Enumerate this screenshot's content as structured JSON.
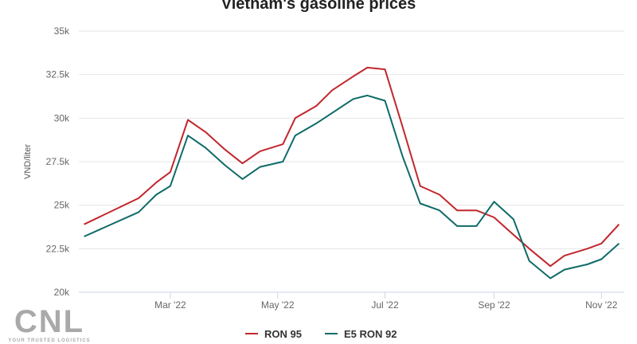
{
  "chart_data": {
    "type": "line",
    "title": "Vietnam's gasoline prices",
    "xlabel": "",
    "ylabel": "VND/liter",
    "ylim": [
      20000,
      35000
    ],
    "xlim": [
      "2022-01-08",
      "2022-11-14"
    ],
    "yticks": [
      20000,
      22500,
      25000,
      27500,
      30000,
      32500,
      35000
    ],
    "ytick_labels": [
      "20k",
      "22.5k",
      "25k",
      "27.5k",
      "30k",
      "32.5k",
      "35k"
    ],
    "xticks": [
      "2022-03-01",
      "2022-05-01",
      "2022-07-01",
      "2022-09-01",
      "2022-11-01"
    ],
    "xtick_labels": [
      "Mar '22",
      "May '22",
      "Jul '22",
      "Sep '22",
      "Nov '22"
    ],
    "grid": "horizontal",
    "legend": "bottom",
    "x": [
      "2022-01-11",
      "2022-02-11",
      "2022-02-21",
      "2022-03-01",
      "2022-03-11",
      "2022-03-21",
      "2022-04-01",
      "2022-04-11",
      "2022-04-21",
      "2022-05-04",
      "2022-05-11",
      "2022-05-23",
      "2022-06-01",
      "2022-06-13",
      "2022-06-21",
      "2022-07-01",
      "2022-07-11",
      "2022-07-21",
      "2022-08-01",
      "2022-08-11",
      "2022-08-22",
      "2022-09-01",
      "2022-09-12",
      "2022-09-21",
      "2022-10-03",
      "2022-10-11",
      "2022-10-24",
      "2022-11-01",
      "2022-11-11"
    ],
    "series": [
      {
        "name": "RON 95",
        "color": "#c1272d",
        "values": [
          23900,
          25400,
          26300,
          26900,
          29900,
          29200,
          28200,
          27400,
          28100,
          28500,
          30000,
          30700,
          31600,
          32400,
          32900,
          32800,
          29500,
          26100,
          25600,
          24700,
          24700,
          24300,
          23300,
          22500,
          21500,
          22100,
          22500,
          22800,
          23900
        ]
      },
      {
        "name": "E5 RON 92",
        "color": "#0e6b68",
        "values": [
          23200,
          24600,
          25600,
          26100,
          29000,
          28300,
          27300,
          26500,
          27200,
          27500,
          29000,
          29700,
          30300,
          31100,
          31300,
          31000,
          27800,
          25100,
          24700,
          23800,
          23800,
          25200,
          24200,
          21800,
          20800,
          21300,
          21600,
          21900,
          22800
        ]
      }
    ]
  },
  "watermark": {
    "logo": "CNL",
    "tagline": "YOUR TRUSTED LOGISTICS"
  }
}
